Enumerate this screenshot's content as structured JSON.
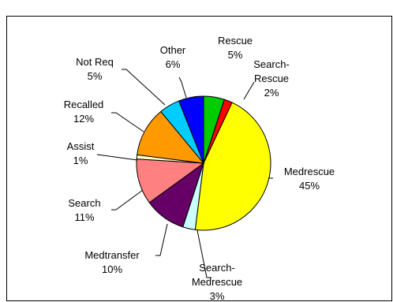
{
  "chart_data": {
    "type": "pie",
    "title": "",
    "slices": [
      {
        "label": "Rescue",
        "value": 5,
        "pct_label": "5%",
        "color": "#00cc00"
      },
      {
        "label": "Search-Rescue",
        "value": 2,
        "pct_label": "2%",
        "color": "#ff0000"
      },
      {
        "label": "Medrescue",
        "value": 45,
        "pct_label": "45%",
        "color": "#ffff00"
      },
      {
        "label": "Search-Medrescue",
        "value": 3,
        "pct_label": "3%",
        "color": "#ccffff"
      },
      {
        "label": "Medtransfer",
        "value": 10,
        "pct_label": "10%",
        "color": "#660066"
      },
      {
        "label": "Search",
        "value": 11,
        "pct_label": "11%",
        "color": "#ff8080"
      },
      {
        "label": "Assist",
        "value": 1,
        "pct_label": "1%",
        "color": "#ffffcc"
      },
      {
        "label": "Recalled",
        "value": 12,
        "pct_label": "12%",
        "color": "#ff9900"
      },
      {
        "label": "Not Req",
        "value": 5,
        "pct_label": "5%",
        "color": "#00ccff"
      },
      {
        "label": "Other",
        "value": 6,
        "pct_label": "6%",
        "color": "#0000ff"
      }
    ],
    "label_lines": [
      [
        "Rescue",
        "5%"
      ],
      [
        "Search-",
        "Rescue",
        "2%"
      ],
      [
        "Medrescue",
        "45%"
      ],
      [
        "Search-",
        "Medrescue",
        "3%"
      ],
      [
        "Medtransfer",
        "10%"
      ],
      [
        "Search",
        "11%"
      ],
      [
        "Assist",
        "1%"
      ],
      [
        "Recalled",
        "12%"
      ],
      [
        "Not Req",
        "5%"
      ],
      [
        "Other",
        "6%"
      ]
    ],
    "legend": "none",
    "start_angle_deg": 0,
    "direction": "clockwise"
  }
}
